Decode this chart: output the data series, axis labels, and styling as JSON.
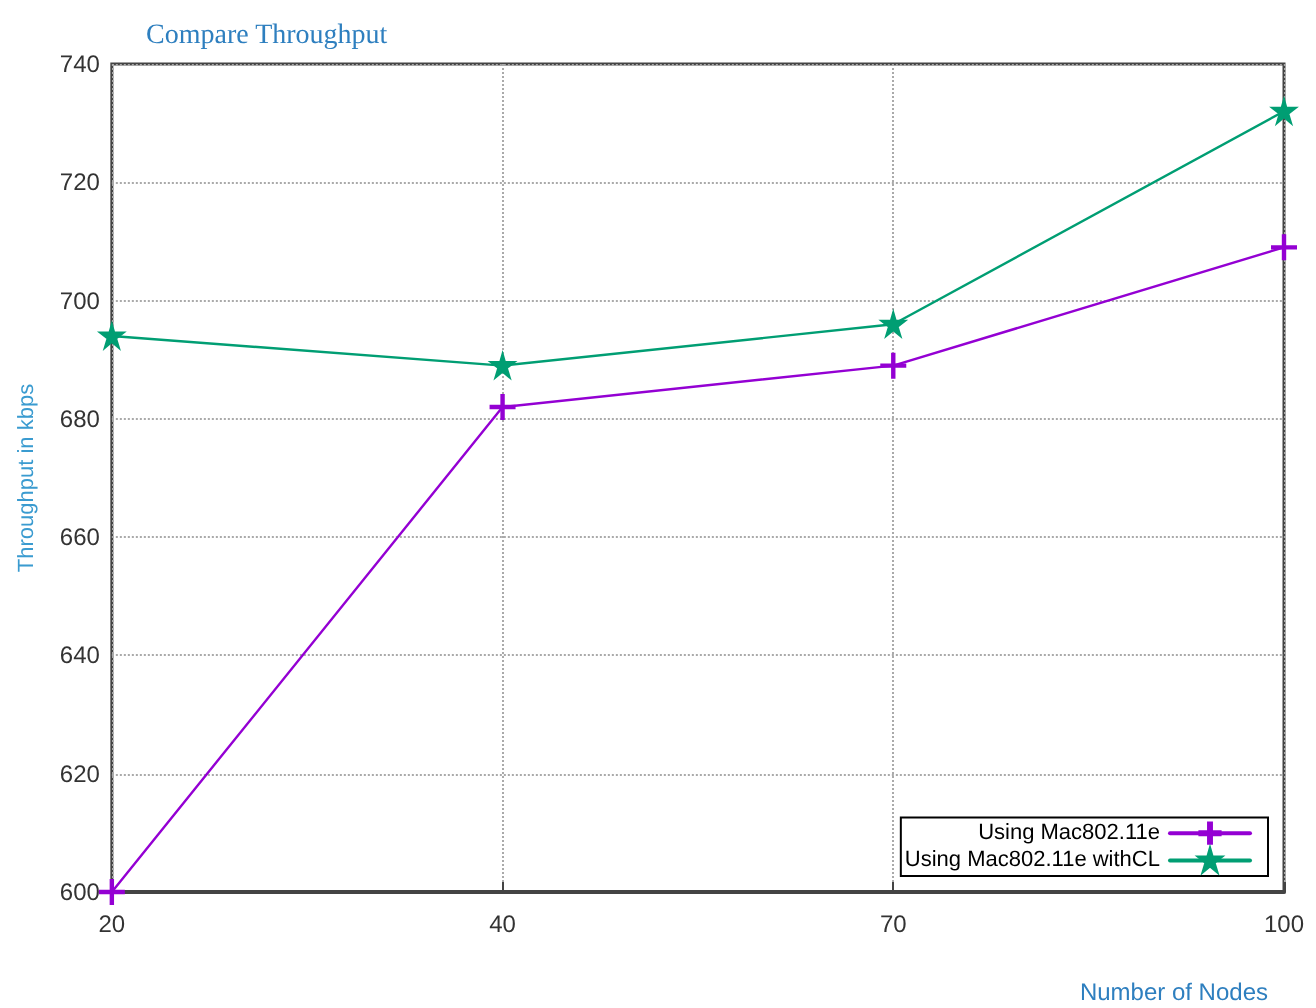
{
  "chart_data": {
    "type": "line",
    "title": "Compare Throughput",
    "xlabel": "Number of Nodes",
    "ylabel": "Throughput in kbps",
    "categories": [
      "20",
      "40",
      "70",
      "100"
    ],
    "series": [
      {
        "name": "Using Mac802.11e",
        "color": "#9400d3",
        "marker": "cross",
        "values": [
          600,
          682,
          689,
          709
        ]
      },
      {
        "name": "Using Mac802.11e withCL",
        "color": "#009e73",
        "marker": "star",
        "values": [
          694,
          689,
          696,
          732
        ]
      }
    ],
    "ylim": [
      600,
      740
    ],
    "yticks": [
      600,
      620,
      640,
      660,
      680,
      700,
      720,
      740
    ],
    "grid": true,
    "legend": "bottom right",
    "line_style": "solid"
  }
}
